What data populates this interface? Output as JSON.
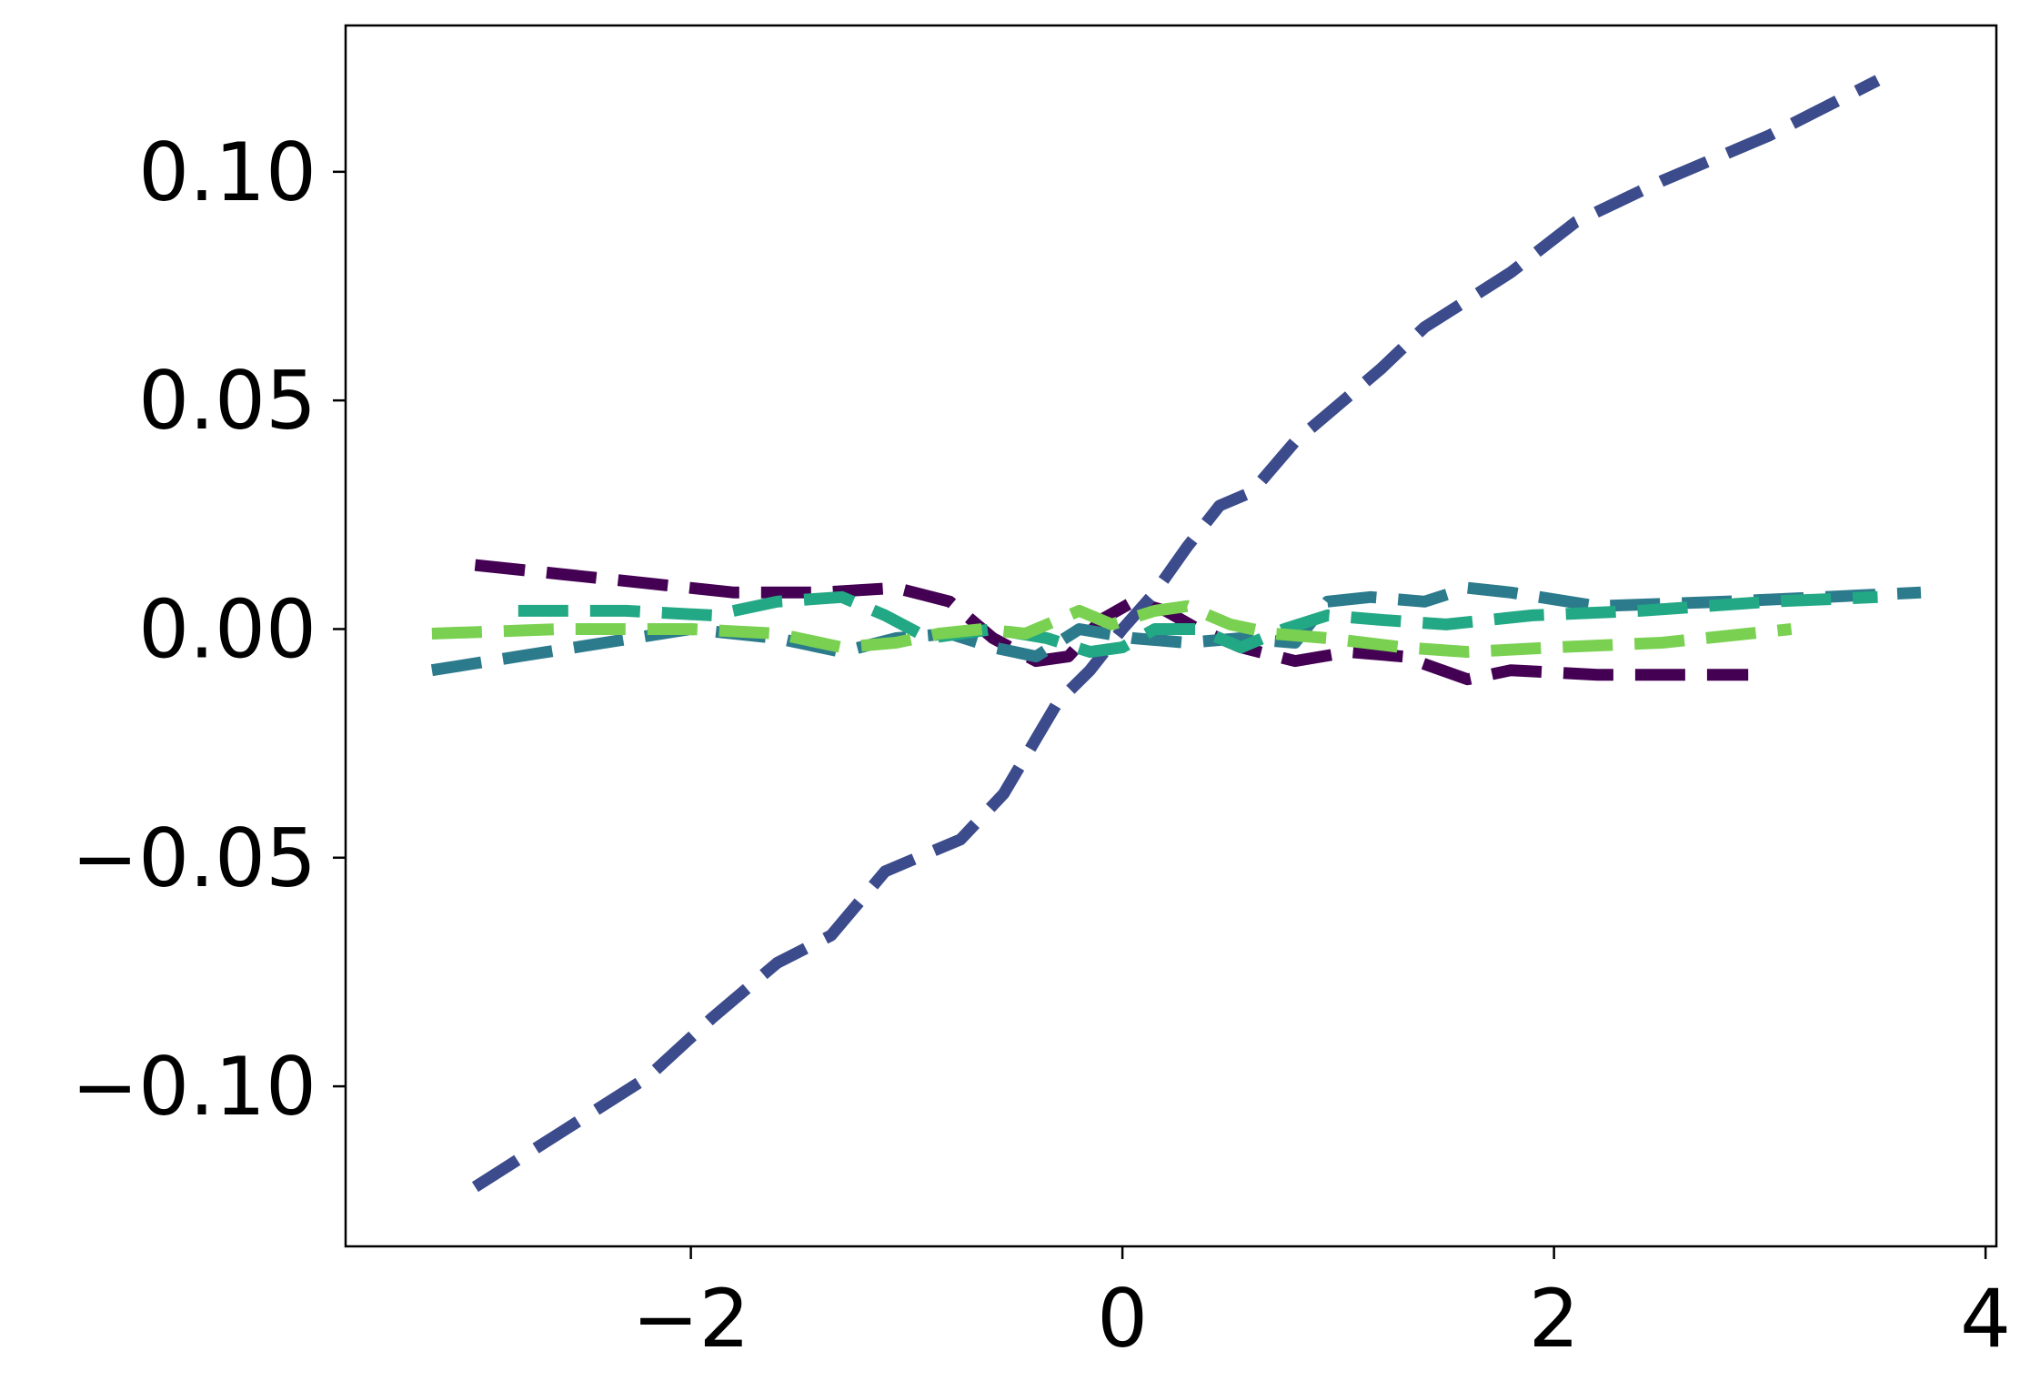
{
  "chart_data": {
    "type": "line",
    "title": "",
    "xlabel": "",
    "ylabel": "",
    "xlim": [
      -3.6,
      4.05
    ],
    "ylim": [
      -0.135,
      0.132
    ],
    "grid": false,
    "legend": "none",
    "xticks": [
      {
        "value": -2,
        "label": "−2"
      },
      {
        "value": 0,
        "label": "0"
      },
      {
        "value": 2,
        "label": "2"
      },
      {
        "value": 4,
        "label": "4"
      }
    ],
    "yticks": [
      {
        "value": 0.1,
        "label": "0.10"
      },
      {
        "value": 0.05,
        "label": "0.05"
      },
      {
        "value": 0.0,
        "label": "0.00"
      },
      {
        "value": -0.05,
        "label": "−0.05"
      },
      {
        "value": -0.1,
        "label": "−0.10"
      }
    ],
    "series": [
      {
        "color": "#440154",
        "points": [
          [
            -3.0,
            0.014
          ],
          [
            -2.6,
            0.012
          ],
          [
            -2.2,
            0.01
          ],
          [
            -1.8,
            0.008
          ],
          [
            -1.4,
            0.008
          ],
          [
            -1.05,
            0.009
          ],
          [
            -0.8,
            0.006
          ],
          [
            -0.6,
            -0.002
          ],
          [
            -0.4,
            -0.007
          ],
          [
            -0.25,
            -0.006
          ],
          [
            -0.1,
            0.002
          ],
          [
            0.05,
            0.006
          ],
          [
            0.2,
            0.004
          ],
          [
            0.35,
            0.0
          ],
          [
            0.55,
            -0.004
          ],
          [
            0.8,
            -0.007
          ],
          [
            1.05,
            -0.005
          ],
          [
            1.3,
            -0.006
          ],
          [
            1.6,
            -0.011
          ],
          [
            1.8,
            -0.009
          ],
          [
            2.2,
            -0.01
          ],
          [
            2.6,
            -0.01
          ],
          [
            2.9,
            -0.01
          ]
        ]
      },
      {
        "color": "#3b4b8c",
        "points": [
          [
            -3.0,
            -0.122
          ],
          [
            -2.6,
            -0.11
          ],
          [
            -2.2,
            -0.098
          ],
          [
            -1.9,
            -0.085
          ],
          [
            -1.6,
            -0.073
          ],
          [
            -1.35,
            -0.067
          ],
          [
            -1.1,
            -0.053
          ],
          [
            -0.9,
            -0.049
          ],
          [
            -0.75,
            -0.046
          ],
          [
            -0.55,
            -0.036
          ],
          [
            -0.4,
            -0.024
          ],
          [
            -0.3,
            -0.016
          ],
          [
            -0.15,
            -0.009
          ],
          [
            0.0,
            0.0
          ],
          [
            0.15,
            0.008
          ],
          [
            0.3,
            0.018
          ],
          [
            0.45,
            0.027
          ],
          [
            0.6,
            0.03
          ],
          [
            0.8,
            0.041
          ],
          [
            1.0,
            0.049
          ],
          [
            1.2,
            0.057
          ],
          [
            1.4,
            0.066
          ],
          [
            1.6,
            0.072
          ],
          [
            1.8,
            0.078
          ],
          [
            2.1,
            0.089
          ],
          [
            2.5,
            0.098
          ],
          [
            3.0,
            0.108
          ],
          [
            3.5,
            0.12
          ]
        ]
      },
      {
        "color": "#2c7b8c",
        "points": [
          [
            -3.2,
            -0.009
          ],
          [
            -2.8,
            -0.006
          ],
          [
            -2.4,
            -0.003
          ],
          [
            -2.0,
            0.0
          ],
          [
            -1.6,
            -0.002
          ],
          [
            -1.3,
            -0.005
          ],
          [
            -1.05,
            -0.002
          ],
          [
            -0.8,
            -0.001
          ],
          [
            -0.6,
            -0.004
          ],
          [
            -0.4,
            -0.006
          ],
          [
            -0.2,
            0.0
          ],
          [
            0.05,
            -0.002
          ],
          [
            0.3,
            -0.003
          ],
          [
            0.55,
            -0.002
          ],
          [
            0.8,
            -0.003
          ],
          [
            0.95,
            0.006
          ],
          [
            1.15,
            0.007
          ],
          [
            1.4,
            0.006
          ],
          [
            1.6,
            0.009
          ],
          [
            1.8,
            0.008
          ],
          [
            2.2,
            0.005
          ],
          [
            2.8,
            0.006
          ],
          [
            3.7,
            0.008
          ]
        ]
      },
      {
        "color": "#22a884",
        "points": [
          [
            -2.8,
            0.004
          ],
          [
            -2.3,
            0.004
          ],
          [
            -1.9,
            0.003
          ],
          [
            -1.6,
            0.006
          ],
          [
            -1.3,
            0.007
          ],
          [
            -1.1,
            0.003
          ],
          [
            -0.9,
            -0.002
          ],
          [
            -0.6,
            0.0
          ],
          [
            -0.35,
            -0.002
          ],
          [
            -0.15,
            -0.005
          ],
          [
            0.0,
            -0.004
          ],
          [
            0.15,
            0.0
          ],
          [
            0.35,
            0.0
          ],
          [
            0.55,
            -0.004
          ],
          [
            0.75,
            0.0
          ],
          [
            0.95,
            0.003
          ],
          [
            1.2,
            0.002
          ],
          [
            1.5,
            0.001
          ],
          [
            1.9,
            0.003
          ],
          [
            2.4,
            0.004
          ],
          [
            3.0,
            0.006
          ],
          [
            3.5,
            0.007
          ]
        ]
      },
      {
        "color": "#7ad151",
        "points": [
          [
            -3.2,
            -0.001
          ],
          [
            -2.6,
            0.0
          ],
          [
            -2.0,
            0.0
          ],
          [
            -1.6,
            -0.001
          ],
          [
            -1.3,
            -0.004
          ],
          [
            -1.05,
            -0.003
          ],
          [
            -0.85,
            -0.001
          ],
          [
            -0.65,
            0.0
          ],
          [
            -0.45,
            -0.001
          ],
          [
            -0.2,
            0.004
          ],
          [
            -0.05,
            0.001
          ],
          [
            0.15,
            0.004
          ],
          [
            0.3,
            0.005
          ],
          [
            0.5,
            0.001
          ],
          [
            0.7,
            -0.001
          ],
          [
            0.95,
            -0.002
          ],
          [
            1.3,
            -0.004
          ],
          [
            1.6,
            -0.005
          ],
          [
            2.0,
            -0.004
          ],
          [
            2.5,
            -0.003
          ],
          [
            3.1,
            0.0
          ]
        ]
      }
    ]
  }
}
